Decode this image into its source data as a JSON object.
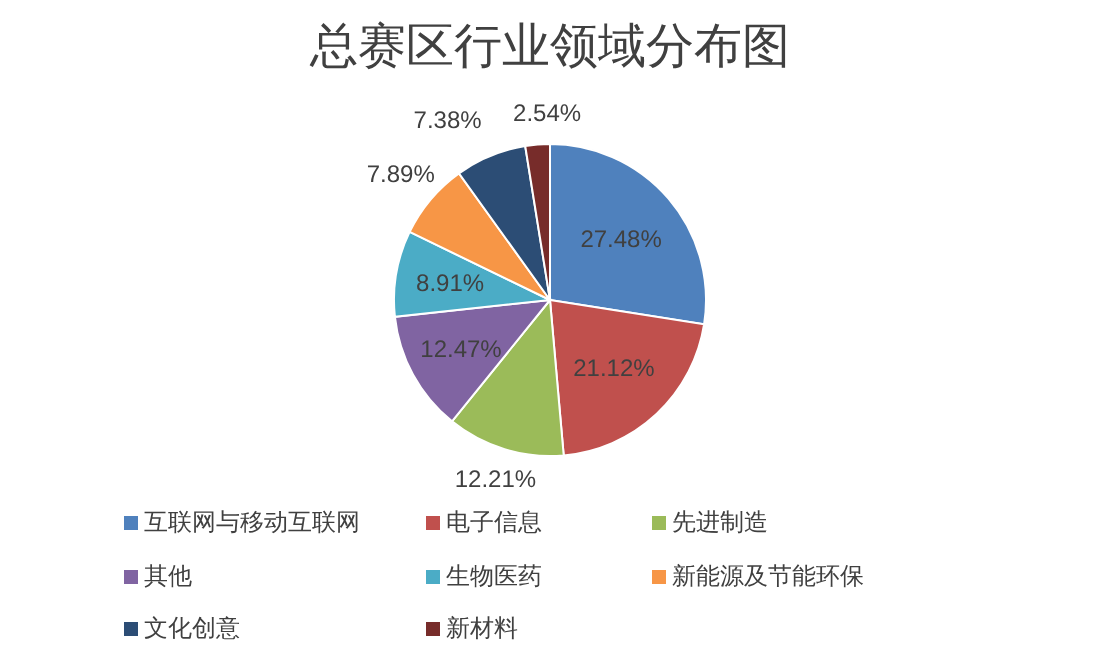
{
  "chart_data": {
    "type": "pie",
    "title": "总赛区行业领域分布图",
    "categories": [
      "互联网与移动互联网",
      "电子信息",
      "先进制造",
      "其他",
      "生物医药",
      "新能源及节能环保",
      "文化创意",
      "新材料"
    ],
    "values": [
      27.48,
      21.12,
      12.21,
      12.47,
      8.91,
      7.89,
      7.38,
      2.54
    ],
    "value_labels": [
      "27.48%",
      "21.12%",
      "12.21%",
      "12.47%",
      "8.91%",
      "7.89%",
      "7.38%",
      "2.54%"
    ],
    "colors": [
      "#4f81bd",
      "#c0504d",
      "#9bbb59",
      "#8064a2",
      "#4bacc6",
      "#f79646",
      "#2c4d75",
      "#772c2a"
    ],
    "legend": "bottom"
  }
}
